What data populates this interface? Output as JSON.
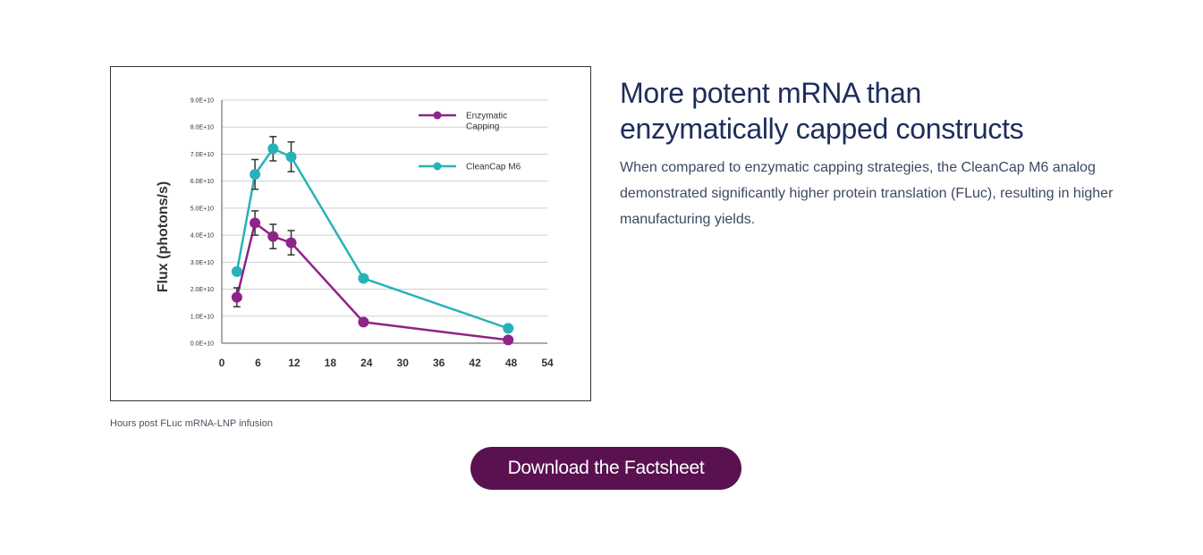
{
  "chart_data": {
    "type": "line",
    "title": "",
    "xlabel": "Hours post FLuc mRNA-LNP infusion",
    "ylabel": "Flux (photons/s)",
    "xlim": [
      0,
      54
    ],
    "ylim": [
      0,
      90000000000.0
    ],
    "x_ticks": [
      0,
      6,
      12,
      18,
      24,
      30,
      36,
      42,
      48,
      54
    ],
    "x_tick_labels": [
      "0",
      "6",
      "12",
      "18",
      "24",
      "30",
      "36",
      "42",
      "48",
      "54"
    ],
    "y_ticks": [
      0,
      10000000000.0,
      20000000000.0,
      30000000000.0,
      40000000000.0,
      50000000000.0,
      60000000000.0,
      70000000000.0,
      80000000000.0,
      90000000000.0
    ],
    "y_tick_labels": [
      "0.0E+10",
      "1.0E+10",
      "2.0E+10",
      "3.0E+10",
      "4.0E+10",
      "5.0E+10",
      "6.0E+10",
      "7.0E+10",
      "8.0E+10",
      "9.0E+10"
    ],
    "grid": true,
    "legend_position": "top-right",
    "series": [
      {
        "name": "Enzymatic Capping",
        "legend_lines": [
          "Enzymatic",
          "Capping"
        ],
        "color": "#8e2388",
        "x": [
          2.5,
          5.5,
          8.5,
          11.5,
          23.5,
          47.5
        ],
        "values": [
          17000000000.0,
          44500000000.0,
          39500000000.0,
          37200000000.0,
          7800000000.0,
          1200000000.0
        ],
        "errors": [
          3500000000.0,
          4500000000.0,
          4500000000.0,
          4500000000.0,
          0,
          0
        ]
      },
      {
        "name": "CleanCap M6",
        "legend_lines": [
          "CleanCap M6"
        ],
        "color": "#27b2b8",
        "x": [
          2.5,
          5.5,
          8.5,
          11.5,
          23.5,
          47.5
        ],
        "values": [
          26500000000.0,
          62500000000.0,
          72000000000.0,
          69000000000.0,
          24000000000.0,
          5500000000.0
        ],
        "errors": [
          0,
          5500000000.0,
          4500000000.0,
          5500000000.0,
          0,
          0
        ]
      }
    ]
  },
  "content": {
    "heading_line1": "More potent mRNA than",
    "heading_line2": "enzymatically capped constructs",
    "body": "When compared to enzymatic capping strategies, the CleanCap M6 analog demonstrated significantly higher protein translation (FLuc), resulting in higher manufacturing yields.",
    "caption": "Hours post FLuc mRNA-LNP infusion",
    "button_label": "Download the Factsheet"
  }
}
